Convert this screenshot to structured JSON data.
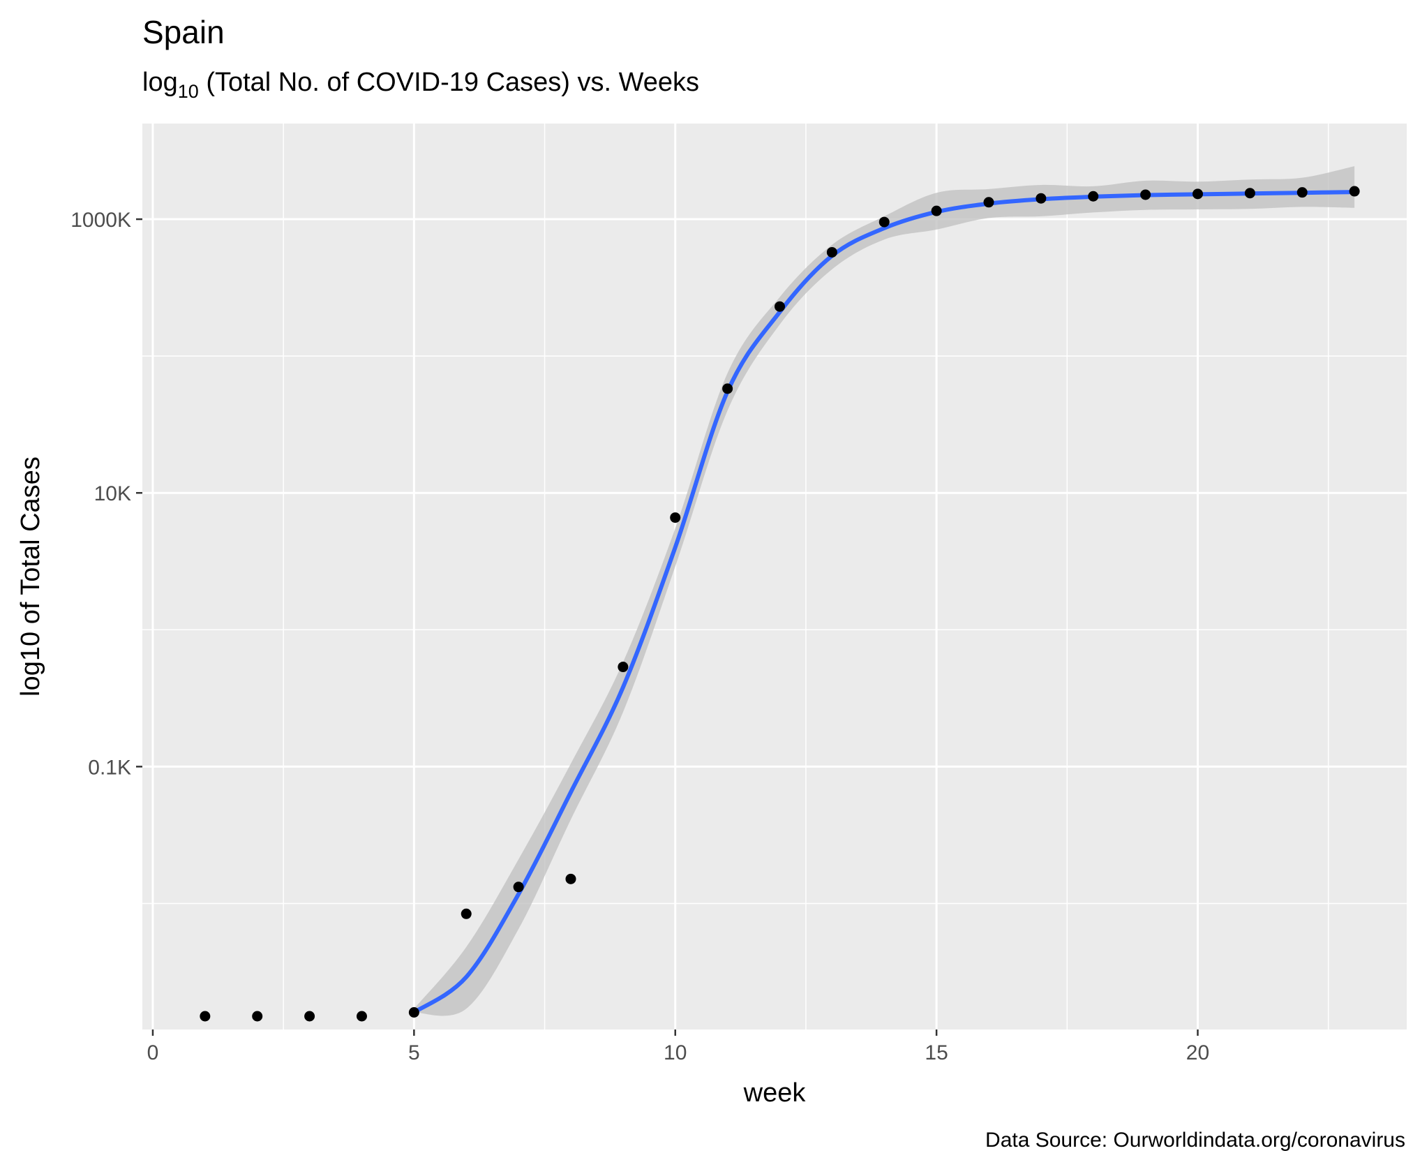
{
  "chart_data": {
    "type": "scatter",
    "title": "Spain",
    "subtitle": {
      "prefix": "log",
      "subscript": "10",
      "rest": " (Total No. of COVID-19 Cases) vs. Weeks"
    },
    "xlabel": "week",
    "ylabel": "log10 of Total Cases",
    "caption": "Data Source: Ourworldindata.org/coronavirus",
    "x_scale": "linear",
    "y_scale": "log10",
    "xlim": [
      -0.2,
      24.0
    ],
    "ylim": [
      0.0012,
      5000
    ],
    "x_ticks": [
      0,
      5,
      10,
      15,
      20
    ],
    "x_tick_labels": [
      "0",
      "5",
      "10",
      "15",
      "20"
    ],
    "y_ticks": [
      0.1,
      10,
      1000
    ],
    "y_tick_labels": [
      "0.1K",
      "10K",
      "1000K"
    ],
    "grid": true,
    "legend": "none",
    "series": [
      {
        "type": "points",
        "color": "#000000",
        "x": [
          1,
          2,
          3,
          4,
          5,
          6,
          7,
          8,
          9,
          10,
          11,
          12,
          13,
          14,
          15,
          16,
          17,
          18,
          19,
          20,
          21,
          22,
          23
        ],
        "y": [
          0.0015,
          0.0015,
          0.0015,
          0.0015,
          0.0016,
          0.0084,
          0.0132,
          0.0151,
          0.535,
          6.6,
          57.8,
          230,
          573,
          954,
          1150,
          1330,
          1420,
          1470,
          1510,
          1530,
          1550,
          1570,
          1600
        ]
      },
      {
        "type": "smooth",
        "color": "#3366ff",
        "ribbon_color": "#bdbdbd",
        "x": [
          5,
          6,
          7,
          8,
          9,
          10,
          11,
          12,
          13,
          14,
          15,
          16,
          17,
          18,
          19,
          20,
          21,
          22,
          23
        ],
        "y": [
          0.0016,
          0.0029,
          0.0117,
          0.065,
          0.38,
          4.0,
          55,
          210,
          540,
          860,
          1130,
          1300,
          1400,
          1460,
          1500,
          1520,
          1540,
          1560,
          1580
        ],
        "ymin": [
          0.0016,
          0.0017,
          0.0065,
          0.041,
          0.25,
          2.9,
          40,
          170,
          430,
          710,
          840,
          1020,
          1050,
          1120,
          1170,
          1180,
          1190,
          1230,
          1210
        ],
        "ymax": [
          0.0017,
          0.0048,
          0.021,
          0.105,
          0.58,
          5.5,
          75,
          270,
          650,
          1050,
          1560,
          1660,
          1780,
          1740,
          1910,
          1880,
          1950,
          2010,
          2440
        ]
      }
    ]
  }
}
